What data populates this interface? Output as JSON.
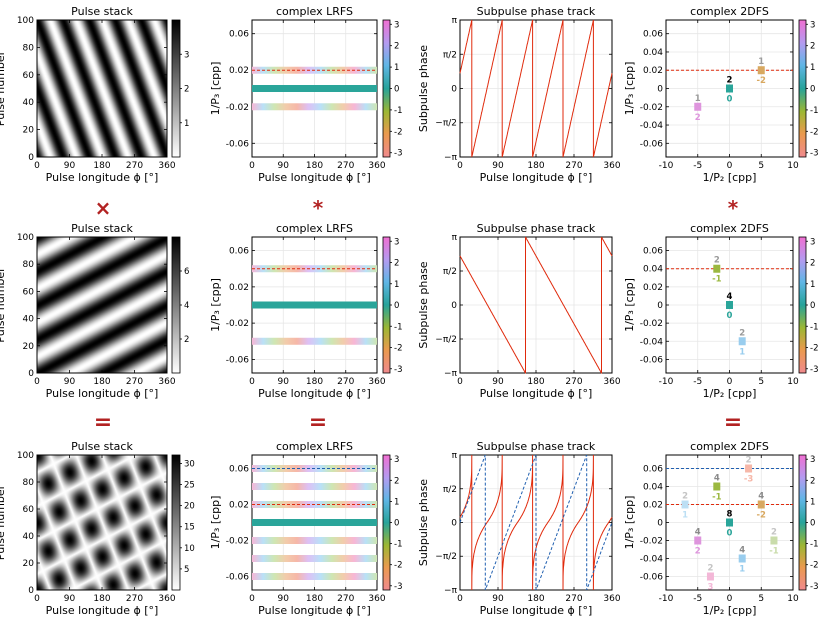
{
  "figure": {
    "width": 830,
    "height": 623,
    "operators": [
      "×",
      "*",
      "*",
      "=",
      "=",
      "="
    ],
    "colors": {
      "red": "#e02a0c",
      "blue": "#1f5fb0",
      "op": "#b22222",
      "grid": "#e6e6e6"
    }
  },
  "chart_data": [
    {
      "id": "r1-stack",
      "type": "heatmap",
      "title": "Pulse stack",
      "xlabel": "Pulse longitude ϕ [°]",
      "ylabel": "Pulse number",
      "xticks": [
        "0",
        "90",
        "180",
        "270",
        "360"
      ],
      "xlim": [
        0,
        360
      ],
      "yticks": [
        "0",
        "20",
        "40",
        "60",
        "80",
        "100"
      ],
      "ylim": [
        0,
        100
      ],
      "pattern": {
        "kind": "drift",
        "P2_deg": 72,
        "P3": 50
      },
      "colorbar": {
        "ticks": [
          "1",
          "2",
          "3"
        ],
        "range": [
          0,
          4
        ]
      }
    },
    {
      "id": "r1-lrfs",
      "type": "heatmap",
      "title": "complex LRFS",
      "xlabel": "Pulse longitude ϕ [°]",
      "ylabel": "1/P₃ [cpp]",
      "xticks": [
        "0",
        "90",
        "180",
        "270",
        "360"
      ],
      "xlim": [
        0,
        360
      ],
      "yticks": [
        "-0.06",
        "-0.02",
        "0.02",
        "0.06"
      ],
      "ylim": [
        -0.075,
        0.075
      ],
      "bands": [
        {
          "y": 0.02,
          "kind": "rainbow"
        },
        {
          "y": 0.0,
          "kind": "teal"
        },
        {
          "y": -0.02,
          "kind": "rainbow"
        }
      ],
      "hlines": [
        {
          "y": 0.02,
          "color": "red"
        }
      ],
      "colorbar": {
        "ticks": [
          "3",
          "2",
          "1",
          "0",
          "-1",
          "-2",
          "-3"
        ],
        "range": [
          -3.2,
          3.2
        ]
      }
    },
    {
      "id": "r1-track",
      "type": "line",
      "title": "Subpulse phase track",
      "xlabel": "Pulse longitude ϕ [°]",
      "ylabel": "Subpulse phase",
      "xticks": [
        "0",
        "90",
        "180",
        "270",
        "360"
      ],
      "xlim": [
        0,
        360
      ],
      "yticks": [
        "π",
        "π/2",
        "0",
        "−π/2",
        "−π"
      ],
      "ylim": [
        -3.1416,
        3.1416
      ],
      "series": [
        {
          "name": "phase",
          "style": "solid",
          "color": "red",
          "kind": "sawtooth",
          "period_deg": 72,
          "direction": 1,
          "offset_deg": -8
        }
      ]
    },
    {
      "id": "r1-2dfs",
      "type": "scatter",
      "title": "complex 2DFS",
      "xlabel": "1/P₂ [cpp]",
      "ylabel": "1/P₃ [cpp]",
      "xticks": [
        "-10",
        "-5",
        "0",
        "5",
        "10"
      ],
      "xlim": [
        -10,
        10
      ],
      "yticks": [
        "-0.06",
        "-0.04",
        "-0.02",
        "0",
        "0.02",
        "0.04",
        "0.06"
      ],
      "ylim": [
        -0.075,
        0.075
      ],
      "hlines": [
        {
          "y": 0.02,
          "color": "red"
        }
      ],
      "points": [
        {
          "x": 0,
          "y": 0.0,
          "top": "2",
          "bottom": "0",
          "color": "#2aa59a",
          "topc": "#000000"
        },
        {
          "x": 5,
          "y": 0.02,
          "top": "1",
          "bottom": "-2",
          "color": "#d8a860",
          "topc": "#9a9a9a"
        },
        {
          "x": -5,
          "y": -0.02,
          "top": "1",
          "bottom": "2",
          "color": "#de95dd",
          "topc": "#9a9a9a"
        }
      ],
      "colorbar": {
        "ticks": [
          "3",
          "2",
          "1",
          "0",
          "-1",
          "-2",
          "-3"
        ],
        "range": [
          -3.2,
          3.2
        ]
      }
    },
    {
      "id": "r2-stack",
      "type": "heatmap",
      "title": "Pulse stack",
      "xlabel": "Pulse longitude ϕ [°]",
      "ylabel": "Pulse number",
      "xticks": [
        "0",
        "90",
        "180",
        "270",
        "360"
      ],
      "xlim": [
        0,
        360
      ],
      "yticks": [
        "0",
        "20",
        "40",
        "60",
        "80",
        "100"
      ],
      "ylim": [
        0,
        100
      ],
      "pattern": {
        "kind": "drift",
        "P2_deg": -180,
        "P3": 25
      },
      "colorbar": {
        "ticks": [
          "2",
          "4",
          "6"
        ],
        "range": [
          0,
          8
        ]
      }
    },
    {
      "id": "r2-lrfs",
      "type": "heatmap",
      "title": "complex LRFS",
      "xlabel": "Pulse longitude ϕ [°]",
      "ylabel": "1/P₃ [cpp]",
      "xticks": [
        "0",
        "90",
        "180",
        "270",
        "360"
      ],
      "xlim": [
        0,
        360
      ],
      "yticks": [
        "-0.06",
        "-0.02",
        "0.02",
        "0.06"
      ],
      "ylim": [
        -0.075,
        0.075
      ],
      "bands": [
        {
          "y": 0.04,
          "kind": "rainbow"
        },
        {
          "y": 0.0,
          "kind": "teal"
        },
        {
          "y": -0.04,
          "kind": "rainbow"
        }
      ],
      "hlines": [
        {
          "y": 0.04,
          "color": "red"
        }
      ],
      "colorbar": {
        "ticks": [
          "3",
          "2",
          "1",
          "0",
          "-1",
          "-2",
          "-3"
        ],
        "range": [
          -3.2,
          3.2
        ]
      }
    },
    {
      "id": "r2-track",
      "type": "line",
      "title": "Subpulse phase track",
      "xlabel": "Pulse longitude ϕ [°]",
      "ylabel": "Subpulse phase",
      "xticks": [
        "0",
        "90",
        "180",
        "270",
        "360"
      ],
      "xlim": [
        0,
        360
      ],
      "yticks": [
        "π",
        "π/2",
        "0",
        "−π/2",
        "−π"
      ],
      "ylim": [
        -3.1416,
        3.1416
      ],
      "series": [
        {
          "name": "phase",
          "style": "solid",
          "color": "red",
          "kind": "sawtooth",
          "period_deg": 180,
          "direction": -1,
          "offset_deg": 65
        }
      ]
    },
    {
      "id": "r2-2dfs",
      "type": "scatter",
      "title": "complex 2DFS",
      "xlabel": "1/P₂ [cpp]",
      "ylabel": "1/P₃ [cpp]",
      "xticks": [
        "-10",
        "-5",
        "0",
        "5",
        "10"
      ],
      "xlim": [
        -10,
        10
      ],
      "yticks": [
        "-0.06",
        "-0.04",
        "-0.02",
        "0",
        "0.02",
        "0.04",
        "0.06"
      ],
      "ylim": [
        -0.075,
        0.075
      ],
      "hlines": [
        {
          "y": 0.04,
          "color": "red"
        }
      ],
      "points": [
        {
          "x": -2,
          "y": 0.04,
          "top": "2",
          "bottom": "-1",
          "color": "#9bb840",
          "topc": "#9a9a9a"
        },
        {
          "x": 0,
          "y": 0.0,
          "top": "4",
          "bottom": "0",
          "color": "#2aa59a",
          "topc": "#000000"
        },
        {
          "x": 2,
          "y": -0.04,
          "top": "2",
          "bottom": "1",
          "color": "#99cdee",
          "topc": "#9a9a9a"
        }
      ],
      "colorbar": {
        "ticks": [
          "3",
          "2",
          "1",
          "0",
          "-1",
          "-2",
          "-3"
        ],
        "range": [
          -3.2,
          3.2
        ]
      }
    },
    {
      "id": "r3-stack",
      "type": "heatmap",
      "title": "Pulse stack",
      "xlabel": "Pulse longitude ϕ [°]",
      "ylabel": "Pulse number",
      "xticks": [
        "0",
        "90",
        "180",
        "270",
        "360"
      ],
      "xlim": [
        0,
        360
      ],
      "yticks": [
        "0",
        "20",
        "40",
        "60",
        "80",
        "100"
      ],
      "ylim": [
        0,
        100
      ],
      "pattern": {
        "kind": "product",
        "P2_deg": 72,
        "P3": 50,
        "P2b_deg": -180,
        "P3b": 25
      },
      "colorbar": {
        "ticks": [
          "5",
          "10",
          "15",
          "20",
          "25",
          "30"
        ],
        "range": [
          0,
          32
        ]
      }
    },
    {
      "id": "r3-lrfs",
      "type": "heatmap",
      "title": "complex LRFS",
      "xlabel": "Pulse longitude ϕ [°]",
      "ylabel": "1/P₃ [cpp]",
      "xticks": [
        "0",
        "90",
        "180",
        "270",
        "360"
      ],
      "xlim": [
        0,
        360
      ],
      "yticks": [
        "-0.06",
        "-0.02",
        "0.02",
        "0.06"
      ],
      "ylim": [
        -0.075,
        0.075
      ],
      "bands": [
        {
          "y": 0.06,
          "kind": "rainbow"
        },
        {
          "y": 0.04,
          "kind": "rainbow"
        },
        {
          "y": 0.02,
          "kind": "rainbow"
        },
        {
          "y": 0.0,
          "kind": "teal"
        },
        {
          "y": -0.02,
          "kind": "rainbow"
        },
        {
          "y": -0.04,
          "kind": "rainbow"
        },
        {
          "y": -0.06,
          "kind": "rainbow"
        }
      ],
      "hlines": [
        {
          "y": 0.06,
          "color": "blue"
        },
        {
          "y": 0.02,
          "color": "red"
        }
      ],
      "colorbar": {
        "ticks": [
          "3",
          "2",
          "1",
          "0",
          "-1",
          "-2",
          "-3"
        ],
        "range": [
          -3.2,
          3.2
        ]
      }
    },
    {
      "id": "r3-track",
      "type": "line",
      "title": "Subpulse phase track",
      "xlabel": "Pulse longitude ϕ [°]",
      "ylabel": "Subpulse phase",
      "xticks": [
        "0",
        "90",
        "180",
        "270",
        "360"
      ],
      "xlim": [
        0,
        360
      ],
      "yticks": [
        "π",
        "π/2",
        "0",
        "−π/2",
        "−π"
      ],
      "ylim": [
        -3.1416,
        3.1416
      ],
      "series": [
        {
          "name": "phase",
          "style": "solid",
          "color": "red",
          "kind": "staircase",
          "period_deg": 72,
          "direction": 1,
          "offset_deg": -8
        },
        {
          "name": "phase-b",
          "style": "dashed",
          "color": "blue",
          "kind": "sawtooth",
          "period_deg": 120,
          "direction": 1,
          "offset_deg": 0
        }
      ]
    },
    {
      "id": "r3-2dfs",
      "type": "scatter",
      "title": "complex 2DFS",
      "xlabel": "1/P₂ [cpp]",
      "ylabel": "1/P₃ [cpp]",
      "xticks": [
        "-10",
        "-5",
        "0",
        "5",
        "10"
      ],
      "xlim": [
        -10,
        10
      ],
      "yticks": [
        "-0.06",
        "-0.04",
        "-0.02",
        "0",
        "0.02",
        "0.04",
        "0.06"
      ],
      "ylim": [
        -0.075,
        0.075
      ],
      "hlines": [
        {
          "y": 0.06,
          "color": "blue"
        },
        {
          "y": 0.02,
          "color": "red"
        }
      ],
      "points": [
        {
          "x": 0,
          "y": 0.0,
          "top": "8",
          "bottom": "0",
          "color": "#2aa59a",
          "topc": "#000000"
        },
        {
          "x": -2,
          "y": 0.04,
          "top": "4",
          "bottom": "-1",
          "color": "#9bb840",
          "topc": "#8a8a8a"
        },
        {
          "x": 2,
          "y": -0.04,
          "top": "4",
          "bottom": "1",
          "color": "#99cdee",
          "topc": "#8a8a8a"
        },
        {
          "x": 5,
          "y": 0.02,
          "top": "4",
          "bottom": "-2",
          "color": "#d8a860",
          "topc": "#8a8a8a"
        },
        {
          "x": -5,
          "y": -0.02,
          "top": "4",
          "bottom": "2",
          "color": "#de95dd",
          "topc": "#8a8a8a"
        },
        {
          "x": -7,
          "y": 0.02,
          "top": "2",
          "bottom": "1",
          "color": "#bcdff4",
          "topc": "#c4c4c4"
        },
        {
          "x": 7,
          "y": -0.02,
          "top": "2",
          "bottom": "-1",
          "color": "#c9dcaa",
          "topc": "#c4c4c4"
        },
        {
          "x": 3,
          "y": 0.06,
          "top": "2",
          "bottom": "-3",
          "color": "#f6b7a8",
          "topc": "#c4c4c4"
        },
        {
          "x": -3,
          "y": -0.06,
          "top": "2",
          "bottom": "3",
          "color": "#f3b7d7",
          "topc": "#c4c4c4"
        }
      ],
      "colorbar": {
        "ticks": [
          "3",
          "2",
          "1",
          "0",
          "-1",
          "-2",
          "-3"
        ],
        "range": [
          -3.2,
          3.2
        ]
      }
    }
  ]
}
